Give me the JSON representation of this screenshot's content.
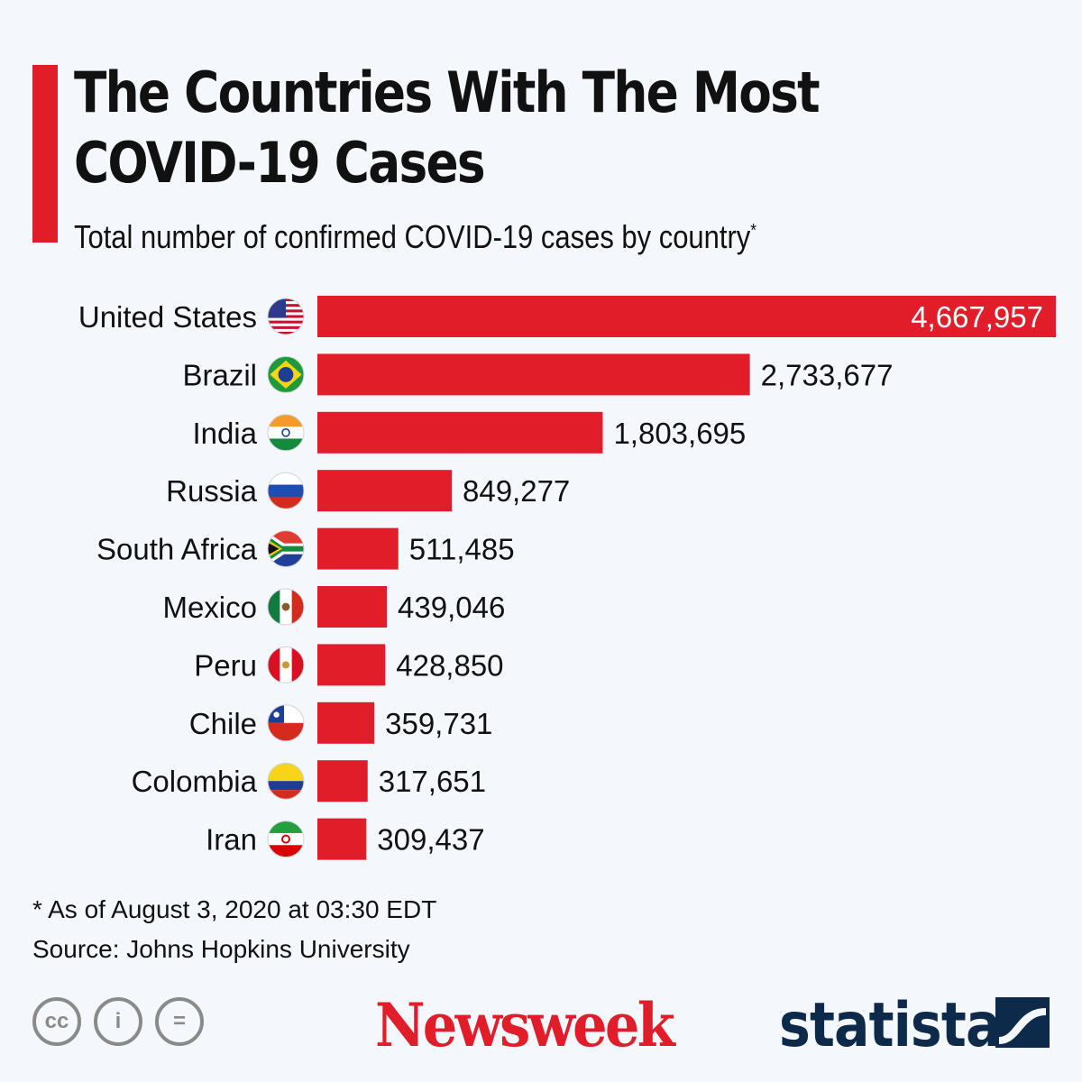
{
  "header": {
    "title_line1": "The Countries With The Most",
    "title_line2": "COVID-19 Cases",
    "subtitle": "Total number of confirmed COVID-19 cases by country",
    "subtitle_mark": "*"
  },
  "chart_data": {
    "type": "bar",
    "orientation": "horizontal",
    "title": "The Countries With The Most COVID-19 Cases",
    "subtitle": "Total number of confirmed COVID-19 cases by country*",
    "categories": [
      "United States",
      "Brazil",
      "India",
      "Russia",
      "South Africa",
      "Mexico",
      "Peru",
      "Chile",
      "Colombia",
      "Iran"
    ],
    "values": [
      4667957,
      2733677,
      1803695,
      849277,
      511485,
      439046,
      428850,
      359731,
      317651,
      309437
    ],
    "value_labels": [
      "4,667,957",
      "2,733,677",
      "1,803,695",
      "849,277",
      "511,485",
      "439,046",
      "428,850",
      "359,731",
      "317,651",
      "309,437"
    ],
    "flags": [
      "us-flag-icon",
      "brazil-flag-icon",
      "india-flag-icon",
      "russia-flag-icon",
      "south-africa-flag-icon",
      "mexico-flag-icon",
      "peru-flag-icon",
      "chile-flag-icon",
      "colombia-flag-icon",
      "iran-flag-icon"
    ],
    "bar_color": "#e11d2a",
    "grid": false,
    "legend": "none"
  },
  "footer": {
    "footnote": "* As of August 3, 2020 at 03:30 EDT",
    "source": "Source: Johns Hopkins University",
    "cc_icons": [
      "cc",
      "i",
      "="
    ],
    "brand_newsweek": "Newsweek",
    "brand_statista": "statista"
  },
  "colors": {
    "accent": "#e11d2a",
    "statista": "#0d2a4a",
    "background": "#f4f7fb"
  }
}
